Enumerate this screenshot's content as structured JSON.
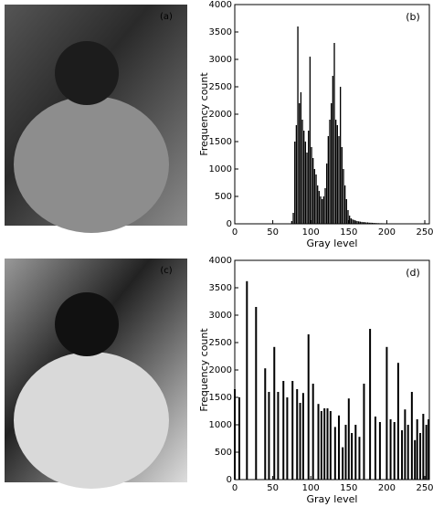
{
  "images": [
    {
      "label": "(a)"
    },
    {
      "label": "(c)"
    }
  ],
  "chart_data": [
    {
      "type": "bar",
      "label": "(b)",
      "x_label": "Gray level",
      "y_label": "Frequency count",
      "x": [
        75,
        77,
        79,
        81,
        83,
        85,
        87,
        89,
        91,
        93,
        95,
        97,
        99,
        101,
        103,
        105,
        107,
        109,
        111,
        113,
        115,
        117,
        119,
        121,
        123,
        125,
        127,
        129,
        131,
        133,
        135,
        137,
        139,
        141,
        143,
        145,
        147,
        149,
        151,
        153,
        155,
        157,
        159,
        161,
        163,
        165,
        167,
        169,
        171,
        173,
        175,
        177,
        179,
        181,
        183,
        185,
        187,
        189,
        191,
        193,
        195,
        197,
        199,
        201,
        203,
        205,
        207,
        209,
        211,
        213,
        215
      ],
      "values": [
        50,
        200,
        1500,
        1800,
        3600,
        2200,
        2400,
        1900,
        1700,
        1500,
        1300,
        1700,
        3050,
        1400,
        1200,
        1000,
        900,
        700,
        600,
        500,
        450,
        500,
        650,
        1100,
        1600,
        1900,
        2200,
        2700,
        3300,
        1900,
        1800,
        1600,
        2500,
        1400,
        1000,
        700,
        450,
        250,
        150,
        100,
        80,
        70,
        60,
        50,
        45,
        40,
        35,
        30,
        30,
        25,
        25,
        20,
        20,
        18,
        15,
        15,
        12,
        12,
        10,
        10,
        9,
        8,
        8,
        7,
        6,
        6,
        5,
        5,
        5,
        4,
        4
      ],
      "xlim": [
        0,
        256
      ],
      "ylim": [
        0,
        4000
      ],
      "xticks": [
        0,
        50,
        100,
        150,
        200,
        250
      ],
      "yticks": [
        0,
        500,
        1000,
        1500,
        2000,
        2500,
        3000,
        3500,
        4000
      ],
      "color": "#000000"
    },
    {
      "type": "bar",
      "label": "(d)",
      "x_label": "Gray level",
      "y_label": "Frequency count",
      "x": [
        0,
        6,
        16,
        28,
        40,
        45,
        52,
        57,
        64,
        69,
        76,
        82,
        86,
        90,
        97,
        103,
        110,
        114,
        118,
        122,
        126,
        132,
        137,
        142,
        146,
        150,
        154,
        159,
        164,
        170,
        178,
        185,
        191,
        200,
        205,
        210,
        215,
        220,
        224,
        228,
        233,
        237,
        240,
        244,
        248,
        252,
        255
      ],
      "values": [
        1650,
        1500,
        3620,
        3150,
        2030,
        1600,
        2420,
        1600,
        1800,
        1500,
        1800,
        1650,
        1400,
        1580,
        2650,
        1750,
        1380,
        1250,
        1300,
        1300,
        1250,
        960,
        1170,
        590,
        1000,
        1480,
        850,
        1000,
        780,
        1750,
        2750,
        1150,
        1050,
        2420,
        1100,
        1050,
        2130,
        900,
        1280,
        1000,
        1600,
        720,
        1100,
        850,
        1200,
        1000,
        1100
      ],
      "xlim": [
        0,
        256
      ],
      "ylim": [
        0,
        4000
      ],
      "xticks": [
        0,
        50,
        100,
        150,
        200,
        250
      ],
      "yticks": [
        0,
        500,
        1000,
        1500,
        2000,
        2500,
        3000,
        3500,
        4000
      ],
      "color": "#000000"
    }
  ]
}
